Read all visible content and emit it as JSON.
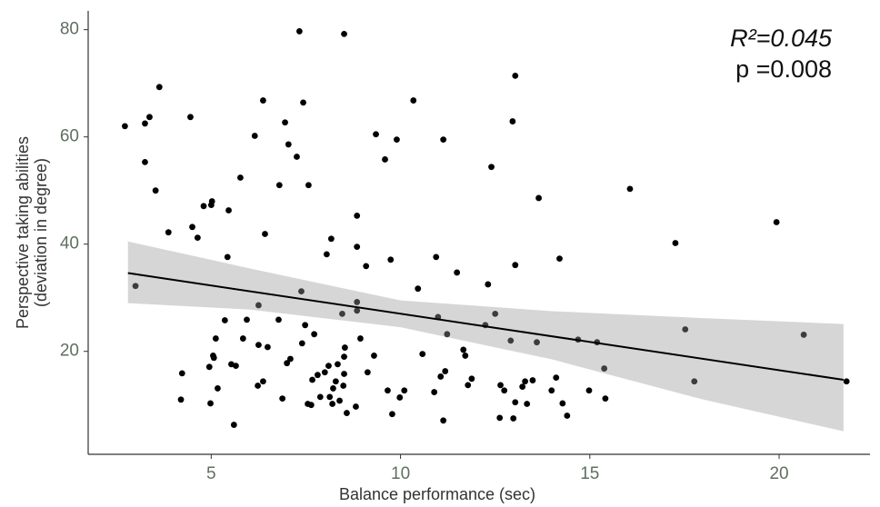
{
  "chart_data": {
    "type": "scatter",
    "x_label": "Balance performance (sec)",
    "y_label": [
      "Perspective taking abilities",
      "(deviation in degree)"
    ],
    "annotations": [
      "R²=0.045",
      "p =0.008"
    ],
    "xlim": [
      1.75,
      22.4
    ],
    "ylim": [
      0.8,
      83.5
    ],
    "xticks": [
      5,
      10,
      15,
      20
    ],
    "yticks": [
      20,
      40,
      60,
      80
    ],
    "color": "#000000",
    "x": [
      2.72,
      3.0,
      3.25,
      3.37,
      3.25,
      3.53,
      3.63,
      3.87,
      4.2,
      4.23,
      4.45,
      4.5,
      4.64,
      4.8,
      4.95,
      4.98,
      5.0,
      5.02,
      5.05,
      5.12,
      5.17,
      5.07,
      5.36,
      5.43,
      5.46,
      5.53,
      5.6,
      5.65,
      5.77,
      5.84,
      5.94,
      6.15,
      6.23,
      6.25,
      6.25,
      6.37,
      6.42,
      6.37,
      6.49,
      6.78,
      6.8,
      6.88,
      6.95,
      7.04,
      7.0,
      7.09,
      7.26,
      7.33,
      7.38,
      7.43,
      7.4,
      7.48,
      7.55,
      7.57,
      7.64,
      7.67,
      7.72,
      7.81,
      7.88,
      8.0,
      8.05,
      8.1,
      8.13,
      8.17,
      8.2,
      8.22,
      8.29,
      8.34,
      8.39,
      8.49,
      8.51,
      8.46,
      8.51,
      8.51,
      8.53,
      8.58,
      8.82,
      8.85,
      8.85,
      8.85,
      8.85,
      8.94,
      9.09,
      9.13,
      9.3,
      9.35,
      9.59,
      9.66,
      9.74,
      9.78,
      9.9,
      9.98,
      10.1,
      10.34,
      10.46,
      10.58,
      10.89,
      10.94,
      10.99,
      11.06,
      11.13,
      11.13,
      11.23,
      11.18,
      11.49,
      11.66,
      11.71,
      11.78,
      11.88,
      12.24,
      12.31,
      12.4,
      12.5,
      12.62,
      12.64,
      12.74,
      12.91,
      12.96,
      12.98,
      13.03,
      13.03,
      13.03,
      13.22,
      13.29,
      13.34,
      13.49,
      13.6,
      13.65,
      13.99,
      14.11,
      14.2,
      14.28,
      14.4,
      14.69,
      14.98,
      15.19,
      15.38,
      15.41,
      16.06,
      17.26,
      17.52,
      17.76,
      19.93,
      20.65,
      21.78
    ],
    "values": [
      62.0,
      32.2,
      62.5,
      63.7,
      55.3,
      50.0,
      69.3,
      42.2,
      11.0,
      15.9,
      63.7,
      43.2,
      41.2,
      47.1,
      17.1,
      10.3,
      47.3,
      48.0,
      19.2,
      22.4,
      13.1,
      18.8,
      25.8,
      37.6,
      46.3,
      17.6,
      6.3,
      17.3,
      52.4,
      22.4,
      25.9,
      60.2,
      13.6,
      28.6,
      21.2,
      14.4,
      41.9,
      66.8,
      20.8,
      25.9,
      51.0,
      11.2,
      62.7,
      58.6,
      17.8,
      18.6,
      56.3,
      79.7,
      31.2,
      66.4,
      21.5,
      24.9,
      10.2,
      51.0,
      10.0,
      14.7,
      23.2,
      15.6,
      11.5,
      16.1,
      38.1,
      17.3,
      11.5,
      41.0,
      10.2,
      13.1,
      14.4,
      17.6,
      10.8,
      13.6,
      79.2,
      27.0,
      19.0,
      15.8,
      20.7,
      8.5,
      9.7,
      45.3,
      39.5,
      29.2,
      27.6,
      22.4,
      35.9,
      16.1,
      19.2,
      60.5,
      55.8,
      12.7,
      37.1,
      8.3,
      59.5,
      11.4,
      12.7,
      66.8,
      31.7,
      19.5,
      12.4,
      37.6,
      26.4,
      15.3,
      7.1,
      59.5,
      23.2,
      16.3,
      34.7,
      20.3,
      19.2,
      13.7,
      14.9,
      24.9,
      32.5,
      54.4,
      27.0,
      7.6,
      13.7,
      12.7,
      22.0,
      62.9,
      7.5,
      71.4,
      36.1,
      10.5,
      13.4,
      14.4,
      10.2,
      14.6,
      21.7,
      48.6,
      12.7,
      15.1,
      37.3,
      10.3,
      8.0,
      22.2,
      12.7,
      21.7,
      16.8,
      11.2,
      50.3,
      40.2,
      24.1,
      14.4,
      44.1,
      23.1,
      14.4
    ],
    "fit": {
      "x": [
        2.8,
        21.7
      ],
      "values": [
        34.6,
        14.7
      ],
      "color": "#000000"
    },
    "band": {
      "x": [
        2.8,
        6,
        10,
        14,
        18,
        21.7
      ],
      "upper": [
        40.5,
        35.5,
        29.5,
        27.5,
        26.2,
        25.1
      ],
      "lower": [
        29.0,
        27.8,
        24.5,
        18.5,
        11.0,
        5.1
      ],
      "color": "#999999"
    }
  }
}
